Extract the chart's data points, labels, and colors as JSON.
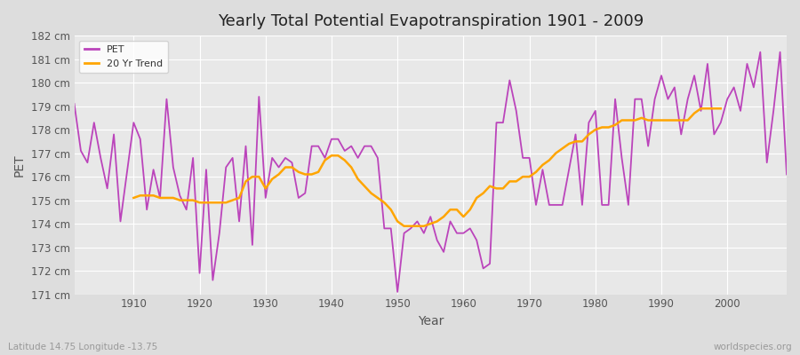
{
  "title": "Yearly Total Potential Evapotranspiration 1901 - 2009",
  "xlabel": "Year",
  "ylabel": "PET",
  "subtitle": "Latitude 14.75 Longitude -13.75",
  "watermark": "worldspecies.org",
  "pet_color": "#BB44BB",
  "trend_color": "#FFA500",
  "fig_bg_color": "#DDDDDD",
  "plot_bg_color": "#E8E8E8",
  "grid_color": "#FFFFFF",
  "ylim": [
    171,
    182
  ],
  "yticks": [
    171,
    172,
    173,
    174,
    175,
    176,
    177,
    178,
    179,
    180,
    181,
    182
  ],
  "xlim_start": 1901,
  "xlim_end": 2009,
  "xticks": [
    1910,
    1920,
    1930,
    1940,
    1950,
    1960,
    1970,
    1980,
    1990,
    2000
  ],
  "years": [
    1901,
    1902,
    1903,
    1904,
    1905,
    1906,
    1907,
    1908,
    1909,
    1910,
    1911,
    1912,
    1913,
    1914,
    1915,
    1916,
    1917,
    1918,
    1919,
    1920,
    1921,
    1922,
    1923,
    1924,
    1925,
    1926,
    1927,
    1928,
    1929,
    1930,
    1931,
    1932,
    1933,
    1934,
    1935,
    1936,
    1937,
    1938,
    1939,
    1940,
    1941,
    1942,
    1943,
    1944,
    1945,
    1946,
    1947,
    1948,
    1949,
    1950,
    1951,
    1952,
    1953,
    1954,
    1955,
    1956,
    1957,
    1958,
    1959,
    1960,
    1961,
    1962,
    1963,
    1964,
    1965,
    1966,
    1967,
    1968,
    1969,
    1970,
    1971,
    1972,
    1973,
    1974,
    1975,
    1976,
    1977,
    1978,
    1979,
    1980,
    1981,
    1982,
    1983,
    1984,
    1985,
    1986,
    1987,
    1988,
    1989,
    1990,
    1991,
    1992,
    1993,
    1994,
    1995,
    1996,
    1997,
    1998,
    1999,
    2000,
    2001,
    2002,
    2003,
    2004,
    2005,
    2006,
    2007,
    2008,
    2009
  ],
  "pet_values": [
    179.1,
    177.1,
    176.6,
    178.3,
    176.8,
    175.5,
    177.8,
    174.1,
    176.2,
    178.3,
    177.6,
    174.6,
    176.3,
    175.1,
    179.3,
    176.4,
    175.2,
    174.6,
    176.8,
    171.9,
    176.3,
    171.6,
    173.6,
    176.4,
    176.8,
    174.1,
    177.3,
    173.1,
    179.4,
    175.1,
    176.8,
    176.4,
    176.8,
    176.6,
    175.1,
    175.3,
    177.3,
    177.3,
    176.8,
    177.6,
    177.6,
    177.1,
    177.3,
    176.8,
    177.3,
    177.3,
    176.8,
    173.8,
    173.8,
    171.1,
    173.6,
    173.8,
    174.1,
    173.6,
    174.3,
    173.3,
    172.8,
    174.1,
    173.6,
    173.6,
    173.8,
    173.3,
    172.1,
    172.3,
    178.3,
    178.3,
    180.1,
    178.8,
    176.8,
    176.8,
    174.8,
    176.3,
    174.8,
    174.8,
    174.8,
    176.3,
    177.8,
    174.8,
    178.3,
    178.8,
    174.8,
    174.8,
    179.3,
    176.8,
    174.8,
    179.3,
    179.3,
    177.3,
    179.3,
    180.3,
    179.3,
    179.8,
    177.8,
    179.3,
    180.3,
    178.8,
    180.8,
    177.8,
    178.3,
    179.3,
    179.8,
    178.8,
    180.8,
    179.8,
    181.3,
    176.6,
    178.8,
    181.3,
    176.1
  ],
  "trend_years": [
    1910,
    1911,
    1912,
    1913,
    1914,
    1915,
    1916,
    1917,
    1918,
    1919,
    1920,
    1921,
    1922,
    1923,
    1924,
    1925,
    1926,
    1927,
    1928,
    1929,
    1930,
    1931,
    1932,
    1933,
    1934,
    1935,
    1936,
    1937,
    1938,
    1939,
    1940,
    1941,
    1942,
    1943,
    1944,
    1945,
    1946,
    1947,
    1948,
    1949,
    1950,
    1951,
    1952,
    1953,
    1954,
    1955,
    1956,
    1957,
    1958,
    1959,
    1960,
    1961,
    1962,
    1963,
    1964,
    1965,
    1966,
    1967,
    1968,
    1969,
    1970,
    1971,
    1972,
    1973,
    1974,
    1975,
    1976,
    1977,
    1978,
    1979,
    1980,
    1981,
    1982,
    1983,
    1984,
    1985,
    1986,
    1987,
    1988,
    1989,
    1990,
    1991,
    1992,
    1993,
    1994,
    1995,
    1996,
    1997,
    1998,
    1999
  ],
  "trend_values": [
    175.1,
    175.2,
    175.2,
    175.2,
    175.1,
    175.1,
    175.1,
    175.0,
    175.0,
    175.0,
    174.9,
    174.9,
    174.9,
    174.9,
    174.9,
    175.0,
    175.1,
    175.8,
    176.0,
    176.0,
    175.5,
    175.9,
    176.1,
    176.4,
    176.4,
    176.2,
    176.1,
    176.1,
    176.2,
    176.7,
    176.9,
    176.9,
    176.7,
    176.4,
    175.9,
    175.6,
    175.3,
    175.1,
    174.9,
    174.6,
    174.1,
    173.9,
    173.9,
    173.9,
    173.9,
    174.0,
    174.1,
    174.3,
    174.6,
    174.6,
    174.3,
    174.6,
    175.1,
    175.3,
    175.6,
    175.5,
    175.5,
    175.8,
    175.8,
    176.0,
    176.0,
    176.2,
    176.5,
    176.7,
    177.0,
    177.2,
    177.4,
    177.5,
    177.5,
    177.8,
    178.0,
    178.1,
    178.1,
    178.2,
    178.4,
    178.4,
    178.4,
    178.5,
    178.4,
    178.4,
    178.4,
    178.4,
    178.4,
    178.4,
    178.4,
    178.7,
    178.9,
    178.9,
    178.9,
    178.9
  ]
}
